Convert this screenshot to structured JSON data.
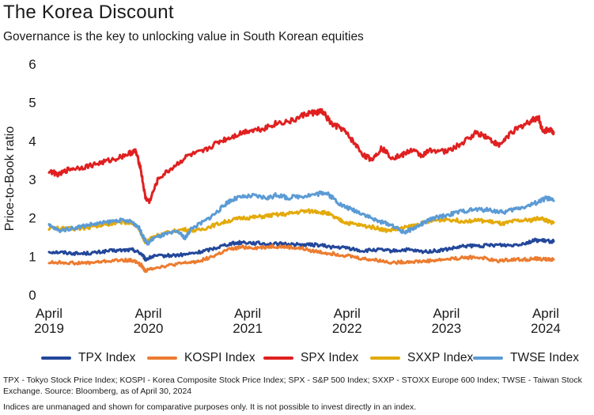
{
  "title": "The Korea Discount",
  "subtitle": "Governance is the key to unlocking value in South Korean equities",
  "footnote": "TPX - Tokyo Stock Price Index; KOSPI - Korea Composite Stock Price Index; SPX - S&P 500 Index; SXXP - STOXX Europe 600 Index; TWSE - Taiwan Stock Exchange. Source: Bloomberg, as of April 30, 2024",
  "disclaimer": "Indices are unmanaged and shown for comparative purposes only. It is not possible to invest directly in an index.",
  "chart_data": {
    "type": "line",
    "title": "The Korea Discount",
    "subtitle": "Governance is the key to unlocking value in South Korean equities",
    "ylabel": "Price-to-Book ratio",
    "xlabel": "",
    "ylim": [
      0,
      6
    ],
    "yticks": [
      "0",
      "1",
      "2",
      "3",
      "4",
      "5",
      "6"
    ],
    "xlim": [
      2019.25,
      2024.33
    ],
    "xticks": [
      {
        "x": 2019.25,
        "line1": "April",
        "line2": "2019"
      },
      {
        "x": 2020.25,
        "line1": "April",
        "line2": "2020"
      },
      {
        "x": 2021.25,
        "line1": "April",
        "line2": "2021"
      },
      {
        "x": 2022.25,
        "line1": "April",
        "line2": "2022"
      },
      {
        "x": 2023.25,
        "line1": "April",
        "line2": "2023"
      },
      {
        "x": 2024.25,
        "line1": "April",
        "line2": "2024"
      }
    ],
    "grid": false,
    "legend_position": "bottom",
    "series": [
      {
        "name": "TPX Index",
        "color": "#22479b",
        "points": [
          [
            2019.25,
            1.1
          ],
          [
            2019.4,
            1.08
          ],
          [
            2019.55,
            1.05
          ],
          [
            2019.7,
            1.07
          ],
          [
            2019.85,
            1.12
          ],
          [
            2020.0,
            1.14
          ],
          [
            2020.1,
            1.15
          ],
          [
            2020.18,
            1.05
          ],
          [
            2020.22,
            0.9
          ],
          [
            2020.3,
            0.98
          ],
          [
            2020.45,
            1.0
          ],
          [
            2020.6,
            1.02
          ],
          [
            2020.75,
            1.08
          ],
          [
            2020.9,
            1.18
          ],
          [
            2021.05,
            1.3
          ],
          [
            2021.2,
            1.35
          ],
          [
            2021.35,
            1.32
          ],
          [
            2021.5,
            1.3
          ],
          [
            2021.65,
            1.3
          ],
          [
            2021.8,
            1.28
          ],
          [
            2021.95,
            1.28
          ],
          [
            2022.1,
            1.22
          ],
          [
            2022.25,
            1.2
          ],
          [
            2022.4,
            1.12
          ],
          [
            2022.55,
            1.15
          ],
          [
            2022.7,
            1.12
          ],
          [
            2022.85,
            1.15
          ],
          [
            2023.0,
            1.1
          ],
          [
            2023.15,
            1.12
          ],
          [
            2023.3,
            1.18
          ],
          [
            2023.45,
            1.25
          ],
          [
            2023.6,
            1.25
          ],
          [
            2023.75,
            1.28
          ],
          [
            2023.9,
            1.27
          ],
          [
            2024.05,
            1.33
          ],
          [
            2024.15,
            1.4
          ],
          [
            2024.25,
            1.38
          ],
          [
            2024.33,
            1.37
          ]
        ]
      },
      {
        "name": "KOSPI Index",
        "color": "#ec7c30",
        "points": [
          [
            2019.25,
            0.82
          ],
          [
            2019.4,
            0.82
          ],
          [
            2019.55,
            0.8
          ],
          [
            2019.7,
            0.82
          ],
          [
            2019.85,
            0.86
          ],
          [
            2020.0,
            0.88
          ],
          [
            2020.1,
            0.87
          ],
          [
            2020.18,
            0.75
          ],
          [
            2020.22,
            0.6
          ],
          [
            2020.3,
            0.68
          ],
          [
            2020.45,
            0.74
          ],
          [
            2020.6,
            0.8
          ],
          [
            2020.75,
            0.85
          ],
          [
            2020.9,
            0.98
          ],
          [
            2021.05,
            1.15
          ],
          [
            2021.2,
            1.22
          ],
          [
            2021.35,
            1.2
          ],
          [
            2021.5,
            1.24
          ],
          [
            2021.65,
            1.22
          ],
          [
            2021.8,
            1.18
          ],
          [
            2021.95,
            1.1
          ],
          [
            2022.1,
            1.05
          ],
          [
            2022.25,
            1.0
          ],
          [
            2022.4,
            0.92
          ],
          [
            2022.55,
            0.88
          ],
          [
            2022.7,
            0.82
          ],
          [
            2022.85,
            0.84
          ],
          [
            2023.0,
            0.85
          ],
          [
            2023.15,
            0.88
          ],
          [
            2023.3,
            0.92
          ],
          [
            2023.45,
            0.95
          ],
          [
            2023.6,
            0.95
          ],
          [
            2023.75,
            0.86
          ],
          [
            2023.9,
            0.9
          ],
          [
            2024.05,
            0.9
          ],
          [
            2024.15,
            0.92
          ],
          [
            2024.25,
            0.9
          ],
          [
            2024.33,
            0.9
          ]
        ]
      },
      {
        "name": "SPX Index",
        "color": "#e02020",
        "points": [
          [
            2019.25,
            3.2
          ],
          [
            2019.35,
            3.1
          ],
          [
            2019.45,
            3.25
          ],
          [
            2019.6,
            3.3
          ],
          [
            2019.75,
            3.4
          ],
          [
            2019.9,
            3.5
          ],
          [
            2020.05,
            3.65
          ],
          [
            2020.12,
            3.72
          ],
          [
            2020.17,
            3.3
          ],
          [
            2020.22,
            2.5
          ],
          [
            2020.26,
            2.4
          ],
          [
            2020.35,
            3.0
          ],
          [
            2020.5,
            3.3
          ],
          [
            2020.65,
            3.6
          ],
          [
            2020.8,
            3.7
          ],
          [
            2020.95,
            3.95
          ],
          [
            2021.1,
            4.1
          ],
          [
            2021.25,
            4.25
          ],
          [
            2021.4,
            4.3
          ],
          [
            2021.55,
            4.45
          ],
          [
            2021.7,
            4.5
          ],
          [
            2021.85,
            4.7
          ],
          [
            2021.95,
            4.72
          ],
          [
            2022.0,
            4.75
          ],
          [
            2022.1,
            4.4
          ],
          [
            2022.2,
            4.3
          ],
          [
            2022.3,
            4.0
          ],
          [
            2022.42,
            3.6
          ],
          [
            2022.5,
            3.5
          ],
          [
            2022.6,
            3.8
          ],
          [
            2022.7,
            3.55
          ],
          [
            2022.8,
            3.6
          ],
          [
            2022.9,
            3.75
          ],
          [
            2023.0,
            3.6
          ],
          [
            2023.1,
            3.75
          ],
          [
            2023.25,
            3.7
          ],
          [
            2023.4,
            3.9
          ],
          [
            2023.55,
            4.2
          ],
          [
            2023.65,
            4.1
          ],
          [
            2023.78,
            3.85
          ],
          [
            2023.9,
            4.2
          ],
          [
            2024.0,
            4.35
          ],
          [
            2024.1,
            4.5
          ],
          [
            2024.18,
            4.6
          ],
          [
            2024.22,
            4.2
          ],
          [
            2024.28,
            4.3
          ],
          [
            2024.33,
            4.2
          ]
        ]
      },
      {
        "name": "SXXP Index",
        "color": "#e3aa0a",
        "points": [
          [
            2019.25,
            1.72
          ],
          [
            2019.4,
            1.7
          ],
          [
            2019.55,
            1.7
          ],
          [
            2019.7,
            1.75
          ],
          [
            2019.85,
            1.82
          ],
          [
            2020.0,
            1.88
          ],
          [
            2020.1,
            1.85
          ],
          [
            2020.17,
            1.6
          ],
          [
            2020.22,
            1.35
          ],
          [
            2020.3,
            1.5
          ],
          [
            2020.45,
            1.6
          ],
          [
            2020.6,
            1.68
          ],
          [
            2020.75,
            1.65
          ],
          [
            2020.9,
            1.78
          ],
          [
            2021.05,
            1.9
          ],
          [
            2021.2,
            1.98
          ],
          [
            2021.35,
            2.0
          ],
          [
            2021.5,
            2.05
          ],
          [
            2021.65,
            2.08
          ],
          [
            2021.8,
            2.15
          ],
          [
            2021.95,
            2.15
          ],
          [
            2022.05,
            2.1
          ],
          [
            2022.15,
            1.95
          ],
          [
            2022.25,
            1.85
          ],
          [
            2022.4,
            1.78
          ],
          [
            2022.55,
            1.72
          ],
          [
            2022.65,
            1.65
          ],
          [
            2022.8,
            1.7
          ],
          [
            2022.95,
            1.8
          ],
          [
            2023.1,
            1.9
          ],
          [
            2023.25,
            1.95
          ],
          [
            2023.4,
            1.9
          ],
          [
            2023.55,
            1.92
          ],
          [
            2023.7,
            1.88
          ],
          [
            2023.82,
            1.82
          ],
          [
            2023.95,
            1.9
          ],
          [
            2024.1,
            1.92
          ],
          [
            2024.2,
            1.98
          ],
          [
            2024.28,
            1.88
          ],
          [
            2024.33,
            1.86
          ]
        ]
      },
      {
        "name": "TWSE Index",
        "color": "#5b9bd5",
        "points": [
          [
            2019.25,
            1.78
          ],
          [
            2019.35,
            1.65
          ],
          [
            2019.5,
            1.72
          ],
          [
            2019.65,
            1.8
          ],
          [
            2019.8,
            1.85
          ],
          [
            2019.95,
            1.92
          ],
          [
            2020.08,
            1.88
          ],
          [
            2020.15,
            1.75
          ],
          [
            2020.2,
            1.48
          ],
          [
            2020.24,
            1.3
          ],
          [
            2020.3,
            1.45
          ],
          [
            2020.42,
            1.55
          ],
          [
            2020.55,
            1.62
          ],
          [
            2020.62,
            1.45
          ],
          [
            2020.68,
            1.7
          ],
          [
            2020.82,
            1.9
          ],
          [
            2020.95,
            2.15
          ],
          [
            2021.05,
            2.4
          ],
          [
            2021.15,
            2.5
          ],
          [
            2021.3,
            2.55
          ],
          [
            2021.45,
            2.5
          ],
          [
            2021.55,
            2.58
          ],
          [
            2021.65,
            2.5
          ],
          [
            2021.8,
            2.55
          ],
          [
            2021.95,
            2.6
          ],
          [
            2022.02,
            2.65
          ],
          [
            2022.1,
            2.52
          ],
          [
            2022.2,
            2.3
          ],
          [
            2022.3,
            2.2
          ],
          [
            2022.42,
            2.08
          ],
          [
            2022.55,
            1.9
          ],
          [
            2022.7,
            1.8
          ],
          [
            2022.82,
            1.6
          ],
          [
            2022.9,
            1.68
          ],
          [
            2023.0,
            1.82
          ],
          [
            2023.1,
            1.95
          ],
          [
            2023.25,
            2.05
          ],
          [
            2023.4,
            2.15
          ],
          [
            2023.55,
            2.2
          ],
          [
            2023.7,
            2.18
          ],
          [
            2023.82,
            2.12
          ],
          [
            2023.95,
            2.22
          ],
          [
            2024.08,
            2.3
          ],
          [
            2024.18,
            2.4
          ],
          [
            2024.26,
            2.5
          ],
          [
            2024.33,
            2.42
          ]
        ]
      }
    ]
  }
}
